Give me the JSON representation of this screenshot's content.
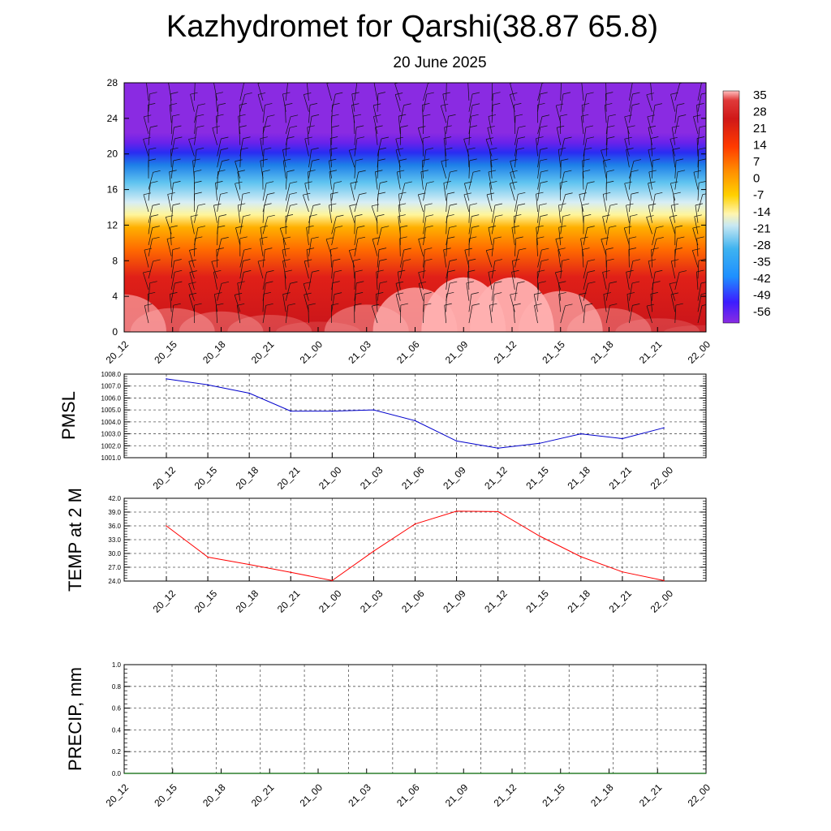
{
  "title": "Kazhydromet for Qarshi(38.87 65.8)",
  "subtitle": "20 June 2025",
  "time_labels": [
    "20_12",
    "20_15",
    "20_18",
    "20_21",
    "21_00",
    "21_03",
    "21_06",
    "21_09",
    "21_12",
    "21_15",
    "21_18",
    "21_21",
    "22_00"
  ],
  "chart_data": [
    {
      "type": "heatmap",
      "title": "",
      "xlabel": "",
      "ylabel": "",
      "x": [
        "20_12",
        "20_15",
        "20_18",
        "20_21",
        "21_00",
        "21_03",
        "21_06",
        "21_09",
        "21_12",
        "21_15",
        "21_18",
        "21_21",
        "22_00"
      ],
      "y_ticks": [
        0,
        4,
        8,
        12,
        16,
        20,
        24,
        28
      ],
      "ylim": [
        0,
        28
      ],
      "overlay": "wind barbs",
      "colorbar": {
        "ticks": [
          "35",
          "28",
          "21",
          "14",
          "7",
          "0",
          "-7",
          "-14",
          "-21",
          "-28",
          "-35",
          "-42",
          "-49",
          "-56"
        ],
        "range": [
          -60,
          38
        ],
        "colors": [
          "#8a2be2",
          "#3c1cff",
          "#1e90ff",
          "#3fb3f0",
          "#a9ddf2",
          "#fff0a0",
          "#ffd100",
          "#ff9a00",
          "#ff4d00",
          "#e21c1c",
          "#cf1414",
          "#ffb3b3"
        ]
      },
      "surface_temp_by_time": [
        33,
        29,
        28,
        27,
        25,
        30,
        35,
        38,
        38,
        34,
        29,
        26,
        24
      ]
    },
    {
      "type": "line",
      "ylabel": "PMSL",
      "x": [
        "20_12",
        "20_15",
        "20_18",
        "20_21",
        "21_00",
        "21_03",
        "21_06",
        "21_09",
        "21_12",
        "21_15",
        "21_18",
        "21_21",
        "22_00"
      ],
      "series": [
        {
          "values": [
            1007.6,
            1007.1,
            1006.4,
            1004.9,
            1004.9,
            1005.0,
            1004.1,
            1002.4,
            1001.8,
            1002.2,
            1003.0,
            1002.6,
            1003.5
          ],
          "color": "#0000cc"
        }
      ],
      "ylim": [
        1001.0,
        1008.0
      ],
      "y_tick_labels": [
        "1001.0",
        "1002.0",
        "1003.0",
        "1004.0",
        "1005.0",
        "1006.0",
        "1007.0",
        "1008.0"
      ],
      "grid": true
    },
    {
      "type": "line",
      "ylabel": "TEMP at 2 M",
      "x": [
        "20_12",
        "20_15",
        "20_18",
        "20_21",
        "21_00",
        "21_03",
        "21_06",
        "21_09",
        "21_12",
        "21_15",
        "21_18",
        "21_21",
        "22_00"
      ],
      "series": [
        {
          "values": [
            36.0,
            29.2,
            27.6,
            25.9,
            24.1,
            30.5,
            36.4,
            39.2,
            39.1,
            33.8,
            29.3,
            26.0,
            24.1
          ],
          "color": "#ff0000"
        }
      ],
      "ylim": [
        24.0,
        42.0
      ],
      "y_tick_labels": [
        "24.0",
        "27.0",
        "30.0",
        "33.0",
        "36.0",
        "39.0",
        "42.0"
      ],
      "grid": true
    },
    {
      "type": "line",
      "ylabel": "PRECIP, mm",
      "x": [
        "20_12",
        "20_15",
        "20_18",
        "20_21",
        "21_00",
        "21_03",
        "21_06",
        "21_09",
        "21_12",
        "21_15",
        "21_18",
        "21_21",
        "22_00"
      ],
      "series": [
        {
          "values": [
            0,
            0,
            0,
            0,
            0,
            0,
            0,
            0,
            0,
            0,
            0,
            0,
            0
          ],
          "color": "#006400"
        }
      ],
      "ylim": [
        0.0,
        1.0
      ],
      "y_tick_labels": [
        "0.0",
        "0.2",
        "0.4",
        "0.6",
        "0.8",
        "1.0"
      ],
      "grid": true
    }
  ]
}
